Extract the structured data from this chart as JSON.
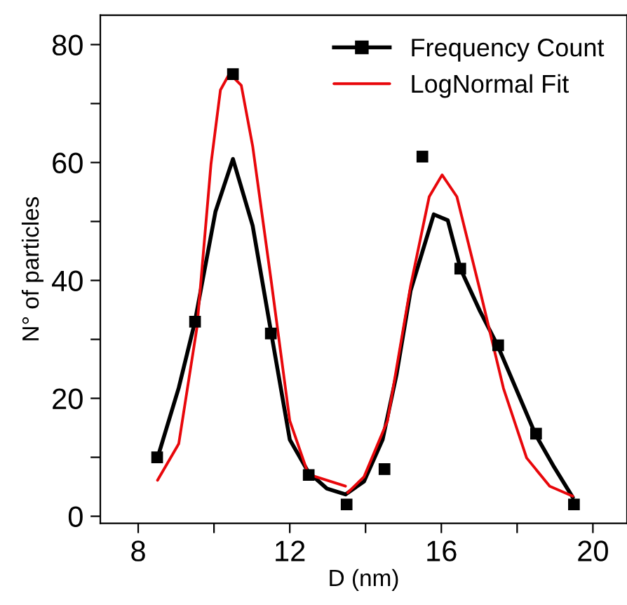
{
  "chart_data": {
    "type": "line",
    "xlabel": "D (nm)",
    "ylabel": "N° of particles",
    "xlim": [
      7,
      20.9
    ],
    "ylim": [
      -1.2,
      85
    ],
    "xticks": [
      8,
      {
        "value": 10,
        "label": null
      },
      12,
      {
        "value": 14,
        "label": null
      },
      16,
      {
        "value": 18,
        "label": null
      },
      20
    ],
    "yticks": [
      0,
      {
        "value": 10,
        "label": null
      },
      20,
      {
        "value": 30,
        "label": null
      },
      40,
      {
        "value": 50,
        "label": null
      },
      60,
      {
        "value": 70,
        "label": null
      },
      80
    ],
    "legend": "top right",
    "grid": false,
    "series": [
      {
        "name": "Frequency Count",
        "type": "scatter",
        "marker": "square",
        "color": "#000000",
        "x": [
          8.5,
          9.5,
          10.5,
          11.5,
          12.5,
          13.5,
          14.5,
          15.5,
          16.5,
          17.5,
          18.5,
          19.5
        ],
        "values": [
          10,
          33,
          75,
          31,
          7,
          2,
          8,
          61,
          42,
          29,
          14,
          2
        ]
      },
      {
        "color": "#000000",
        "x": [
          8.51,
          9.07,
          9.49,
          10.04,
          10.5,
          11.02,
          11.51,
          12.0,
          12.49,
          12.98,
          13.47,
          13.96,
          14.45,
          14.82,
          15.19,
          15.8,
          16.17,
          16.51,
          17.02,
          17.49,
          18.49,
          18.98,
          19.47
        ],
        "values": [
          9.9,
          21.8,
          32.8,
          51.7,
          60.6,
          49.3,
          31.1,
          13,
          7.5,
          4.7,
          3.7,
          5.9,
          13,
          24.1,
          38.3,
          51.2,
          50.2,
          41.9,
          34.8,
          28.9,
          13.8,
          8.3,
          3.2
        ]
      },
      {
        "name": "LogNormal Fit",
        "color": "#e8070b",
        "x": [
          8.51,
          9.07,
          9.55,
          9.92,
          10.17,
          10.41,
          10.72,
          11.02,
          11.51,
          12.0,
          12.49,
          13.47
        ],
        "values": [
          6.1,
          12.3,
          32,
          59.7,
          72.3,
          75.1,
          73.1,
          62.8,
          39.9,
          16.2,
          7.1,
          5.1
        ]
      },
      {
        "color": "#e8070b",
        "x": [
          13.53,
          13.96,
          14.58,
          15.19,
          15.68,
          16.02,
          16.41,
          17.02,
          17.64,
          18.25,
          18.86,
          19.47
        ],
        "values": [
          4.0,
          6.7,
          16.2,
          39.1,
          54.2,
          57.9,
          54.2,
          38.3,
          21.7,
          9.9,
          5.1,
          3.4
        ]
      }
    ]
  }
}
